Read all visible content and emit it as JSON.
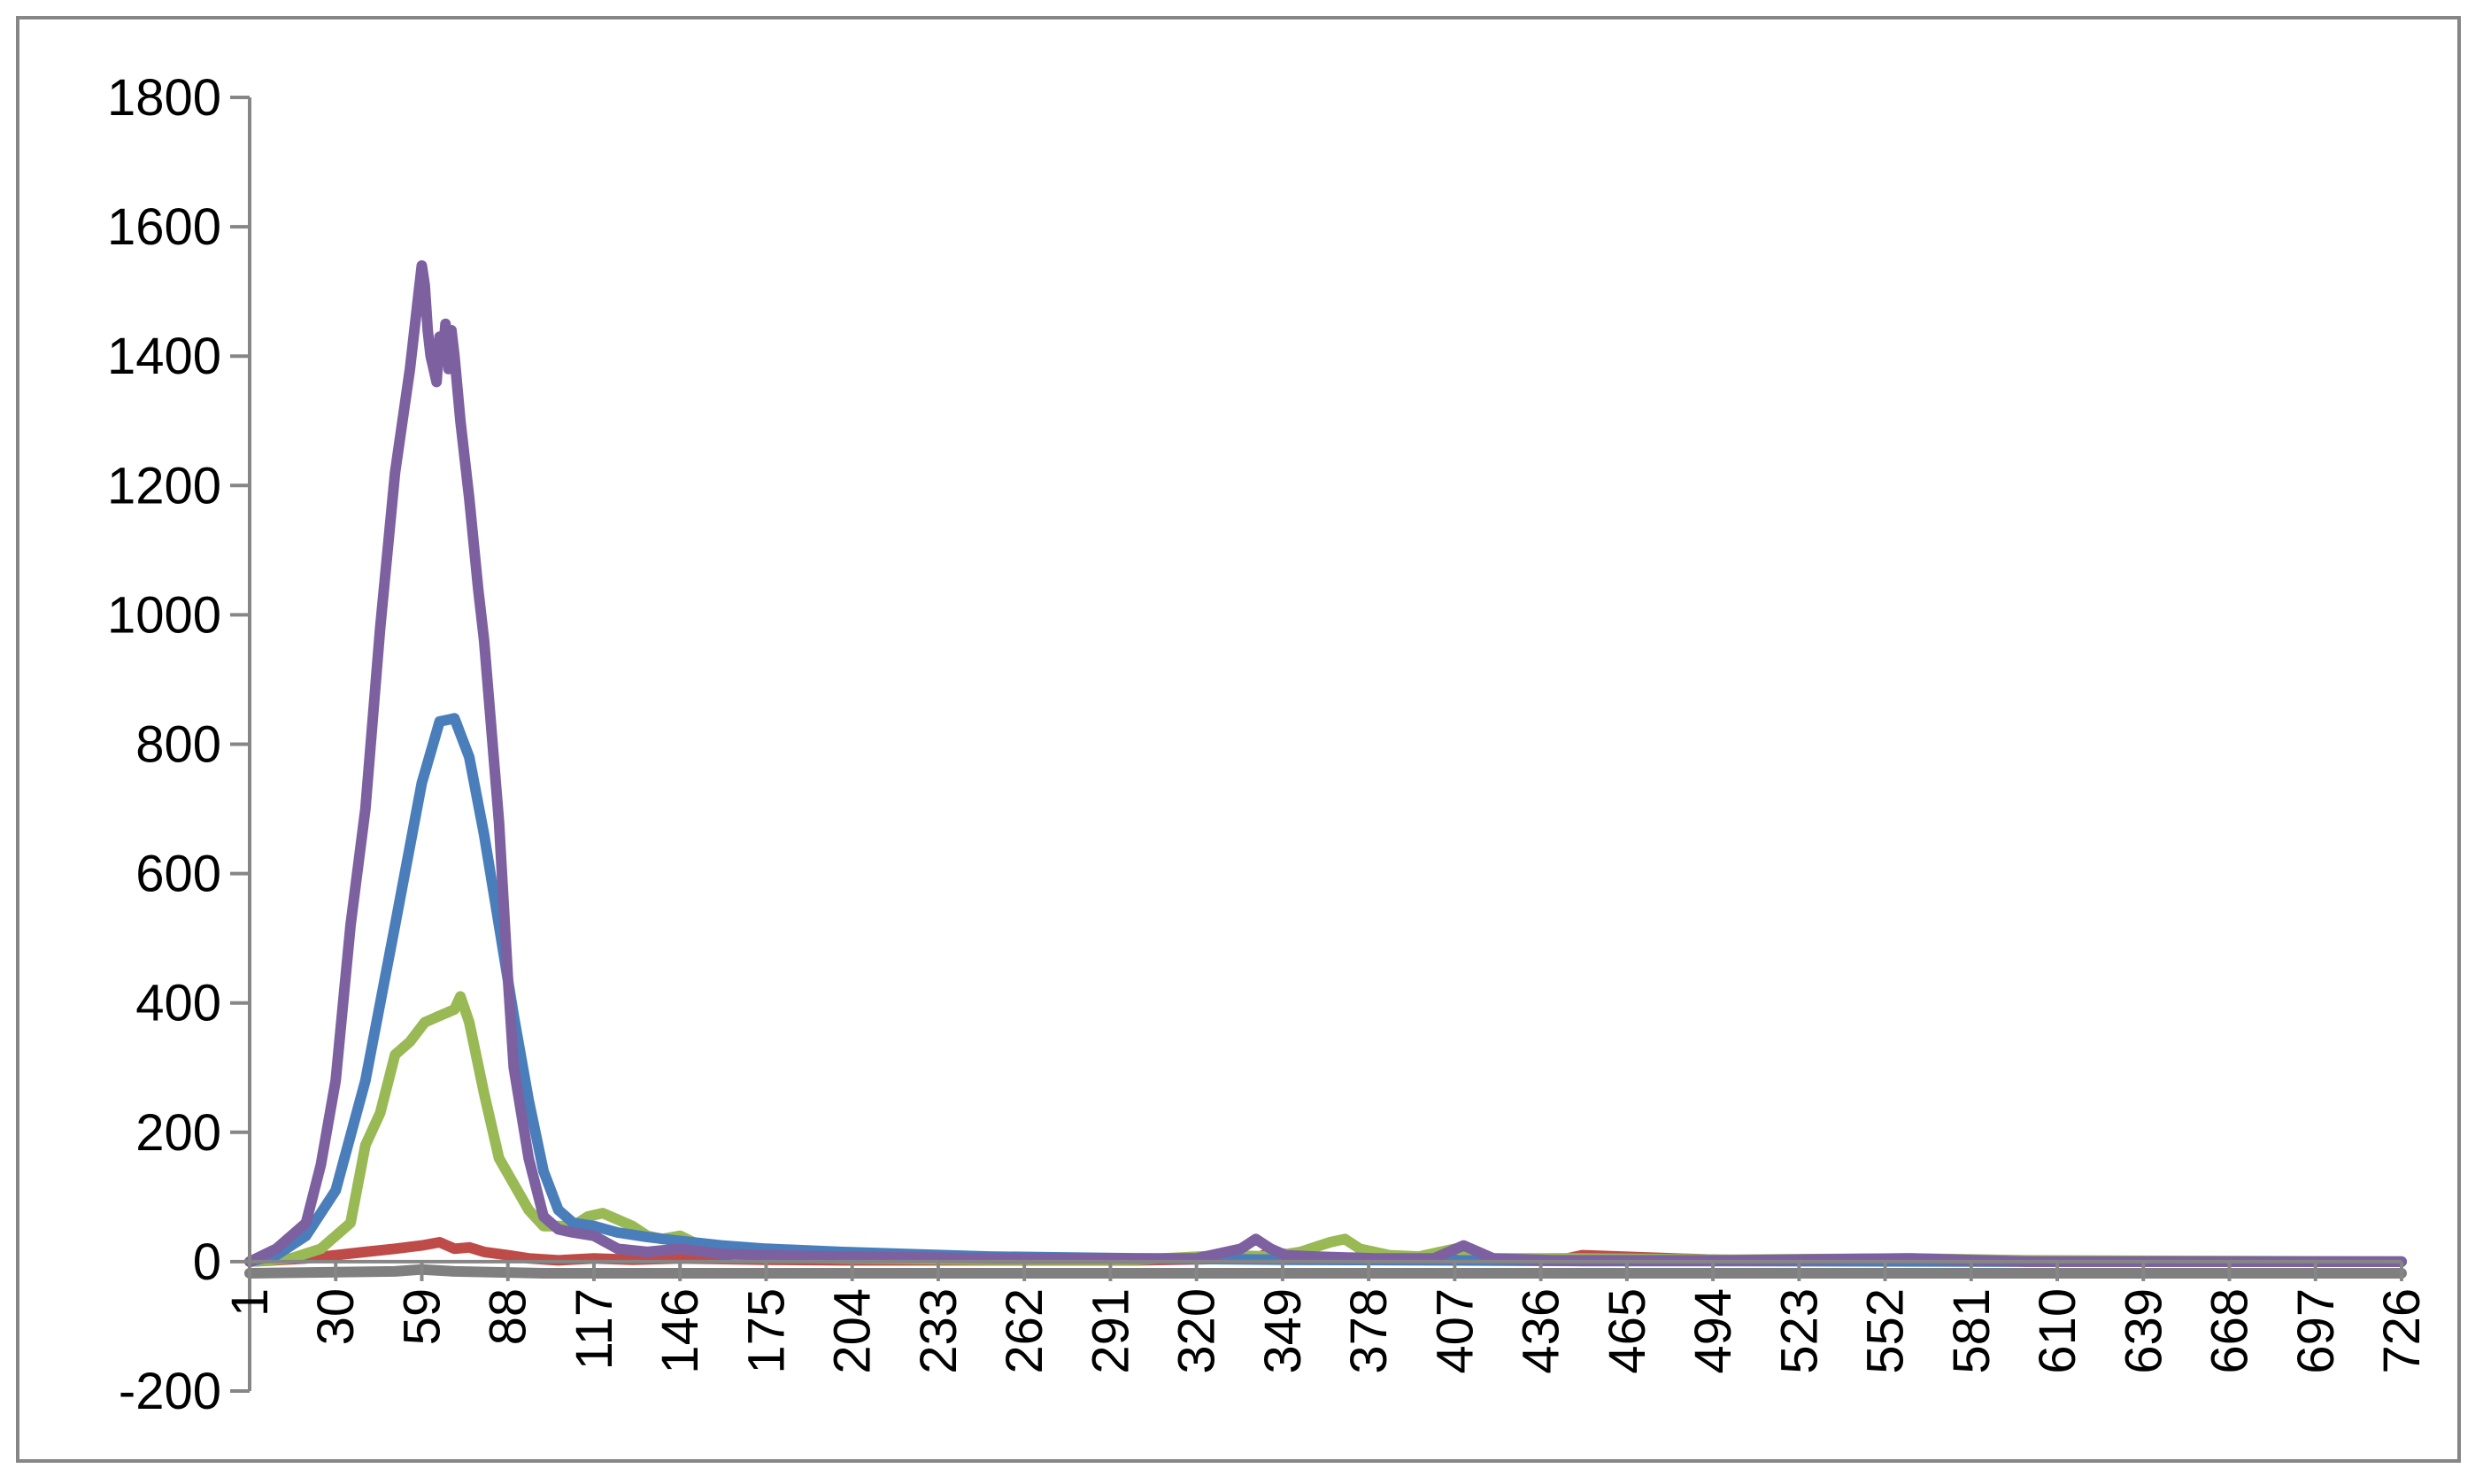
{
  "chart_data": {
    "type": "line",
    "title": "",
    "xlabel": "",
    "ylabel": "",
    "ylim": [
      -200,
      1800
    ],
    "yticks": [
      -200,
      0,
      200,
      400,
      600,
      800,
      1000,
      1200,
      1400,
      1600,
      1800
    ],
    "xlim": [
      1,
      726
    ],
    "xticks": [
      1,
      30,
      59,
      88,
      117,
      146,
      175,
      204,
      233,
      262,
      291,
      320,
      349,
      378,
      407,
      436,
      465,
      494,
      523,
      552,
      581,
      610,
      639,
      668,
      697,
      726
    ],
    "grid": false,
    "legend": "none",
    "series": [
      {
        "color": "#4a7ebb",
        "x": [
          1,
          10,
          20,
          30,
          40,
          50,
          59,
          65,
          70,
          75,
          80,
          85,
          90,
          95,
          100,
          105,
          110,
          117,
          125,
          135,
          146,
          160,
          175,
          200,
          250,
          300,
          350,
          400,
          450,
          500,
          600,
          726
        ],
        "y": [
          0,
          10,
          40,
          110,
          280,
          520,
          740,
          835,
          840,
          780,
          660,
          520,
          380,
          250,
          140,
          80,
          60,
          55,
          45,
          38,
          32,
          25,
          20,
          15,
          8,
          5,
          3,
          2,
          1,
          1,
          0,
          0
        ]
      },
      {
        "color": "#be4b48",
        "x": [
          1,
          20,
          40,
          50,
          59,
          65,
          70,
          75,
          80,
          88,
          95,
          105,
          117,
          130,
          146,
          175,
          200,
          250,
          300,
          340,
          345,
          360,
          400,
          445,
          450,
          500,
          600,
          726
        ],
        "y": [
          0,
          5,
          15,
          20,
          25,
          30,
          20,
          22,
          15,
          10,
          5,
          2,
          5,
          3,
          5,
          3,
          2,
          2,
          2,
          5,
          15,
          5,
          3,
          5,
          10,
          2,
          1,
          0
        ]
      },
      {
        "color": "#98b954",
        "x": [
          1,
          15,
          25,
          35,
          40,
          45,
          50,
          55,
          60,
          65,
          70,
          72,
          75,
          80,
          85,
          90,
          95,
          100,
          105,
          110,
          115,
          120,
          125,
          130,
          135,
          140,
          146,
          155,
          165,
          175,
          200,
          250,
          300,
          330,
          345,
          355,
          365,
          370,
          375,
          385,
          395,
          407,
          420,
          445,
          500,
          560,
          600,
          726
        ],
        "y": [
          0,
          5,
          20,
          60,
          180,
          230,
          320,
          340,
          370,
          380,
          390,
          410,
          370,
          260,
          160,
          120,
          80,
          55,
          55,
          55,
          70,
          75,
          65,
          55,
          40,
          35,
          40,
          20,
          10,
          8,
          5,
          3,
          3,
          10,
          8,
          15,
          30,
          35,
          20,
          10,
          8,
          20,
          5,
          5,
          3,
          5,
          2,
          0
        ]
      },
      {
        "color": "#7d60a0",
        "x": [
          1,
          10,
          20,
          25,
          30,
          35,
          40,
          45,
          50,
          55,
          58,
          59,
          60,
          61,
          62,
          63,
          64,
          65,
          66,
          67,
          68,
          69,
          70,
          72,
          75,
          78,
          80,
          85,
          88,
          90,
          95,
          100,
          105,
          110,
          117,
          125,
          135,
          146,
          160,
          175,
          200,
          250,
          300,
          320,
          335,
          340,
          345,
          350,
          360,
          380,
          400,
          405,
          410,
          420,
          440,
          500,
          560,
          600,
          726
        ],
        "y": [
          0,
          20,
          60,
          150,
          280,
          520,
          700,
          980,
          1220,
          1380,
          1500,
          1540,
          1510,
          1440,
          1400,
          1380,
          1360,
          1430,
          1400,
          1450,
          1380,
          1440,
          1400,
          1300,
          1180,
          1040,
          960,
          680,
          440,
          300,
          160,
          70,
          50,
          45,
          40,
          20,
          15,
          20,
          12,
          10,
          8,
          5,
          5,
          5,
          20,
          35,
          20,
          10,
          8,
          5,
          5,
          15,
          25,
          5,
          2,
          2,
          5,
          0,
          0
        ]
      },
      {
        "color": "#7f7f7f",
        "x": [
          1,
          50,
          59,
          70,
          100,
          200,
          300,
          400,
          500,
          600,
          726
        ],
        "y": [
          -18,
          -15,
          -12,
          -15,
          -18,
          -18,
          -18,
          -18,
          -18,
          -18,
          -18
        ]
      }
    ]
  }
}
